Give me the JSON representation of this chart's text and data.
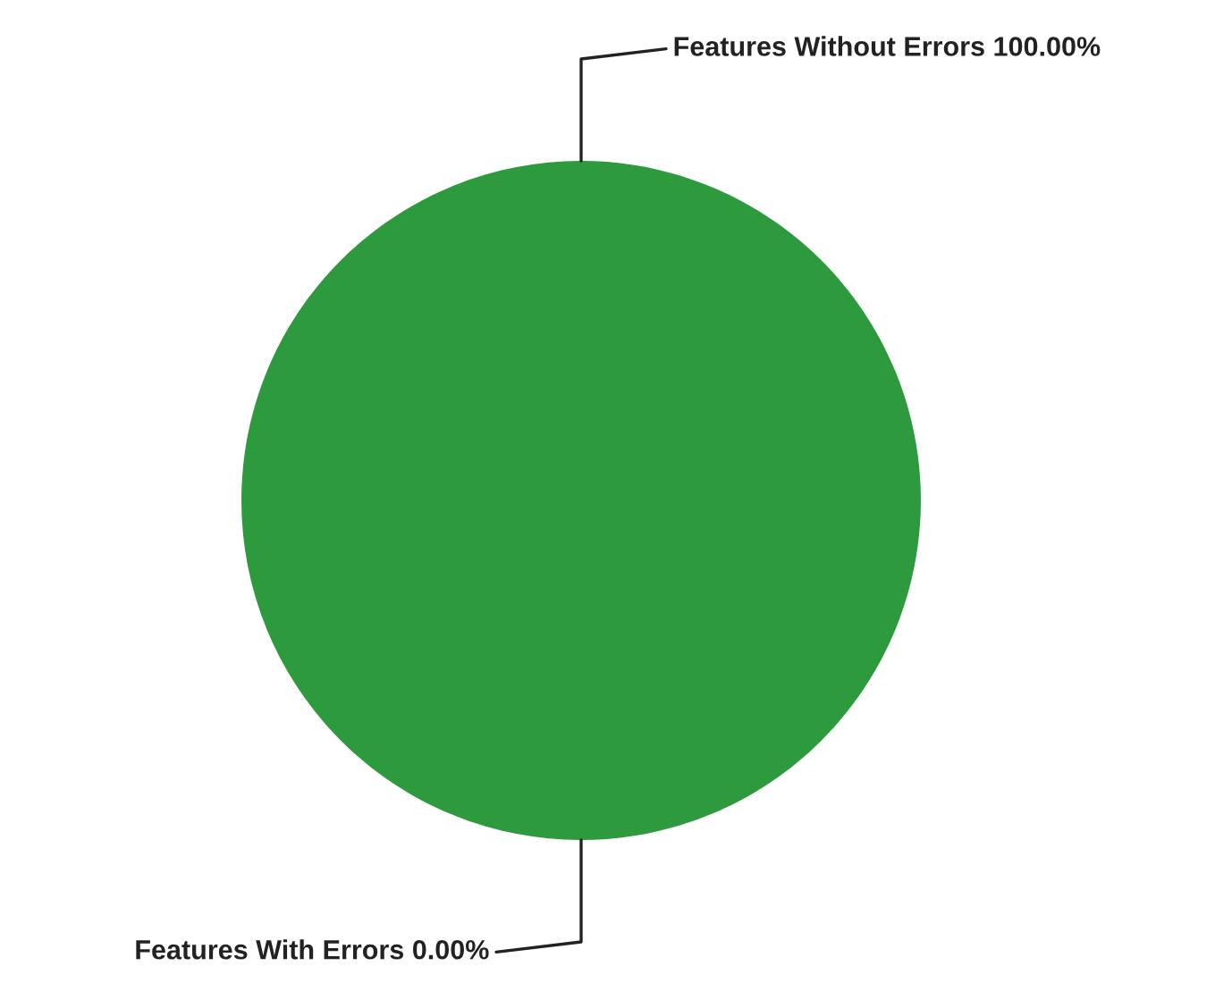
{
  "chart_data": {
    "type": "pie",
    "categories": [
      "Features Without Errors",
      "Features With Errors"
    ],
    "values": [
      100,
      0
    ],
    "value_labels": [
      "100.00%",
      "0.00%"
    ],
    "colors": [
      "#2e9a3e",
      "#1f5fbf"
    ]
  }
}
